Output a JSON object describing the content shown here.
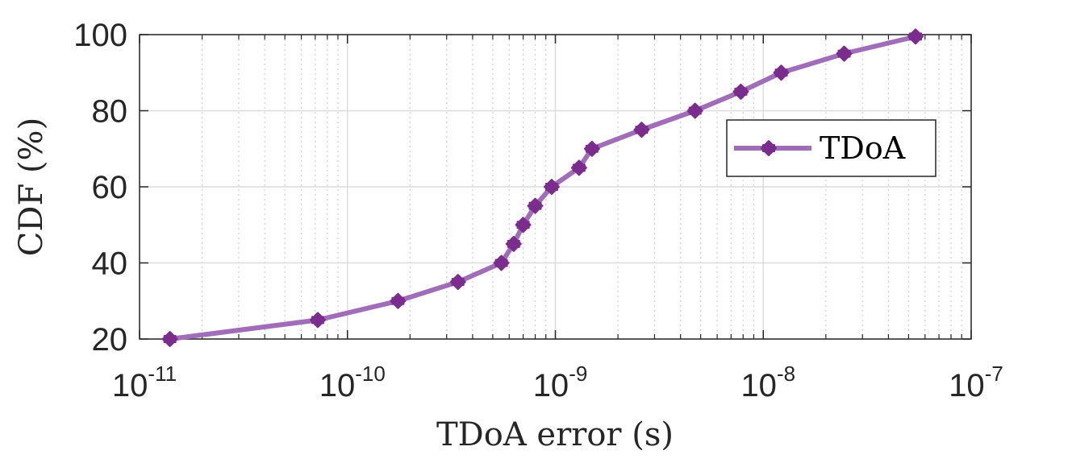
{
  "chart_data": {
    "type": "line",
    "x_scale": "log",
    "xlim": [
      1e-11,
      1e-07
    ],
    "ylim": [
      20,
      100
    ],
    "xlabel": "TDoA error (s)",
    "ylabel": "CDF (%)",
    "grid": true,
    "legend_position": "right",
    "x_ticks": [
      {
        "base": "10",
        "exp": "-11",
        "value": 1e-11
      },
      {
        "base": "10",
        "exp": "-10",
        "value": 1e-10
      },
      {
        "base": "10",
        "exp": "-9",
        "value": 1e-09
      },
      {
        "base": "10",
        "exp": "-8",
        "value": 1e-08
      },
      {
        "base": "10",
        "exp": "-7",
        "value": 1e-07
      }
    ],
    "y_ticks": [
      "20",
      "40",
      "60",
      "80",
      "100"
    ],
    "series": [
      {
        "name": "TDoA",
        "color": "#7B2D8E",
        "line_color": "#A06DB8",
        "x": [
          1.4e-11,
          7.2e-11,
          1.75e-10,
          3.4e-10,
          5.5e-10,
          6.3e-10,
          7e-10,
          8e-10,
          9.6e-10,
          1.3e-09,
          1.5e-09,
          2.6e-09,
          4.7e-09,
          7.8e-09,
          1.22e-08,
          2.45e-08,
          5.4e-08
        ],
        "y": [
          20,
          25,
          30,
          35,
          40,
          45,
          50,
          55,
          60,
          65,
          70,
          75,
          80,
          85,
          90,
          95,
          99.5
        ]
      }
    ]
  }
}
